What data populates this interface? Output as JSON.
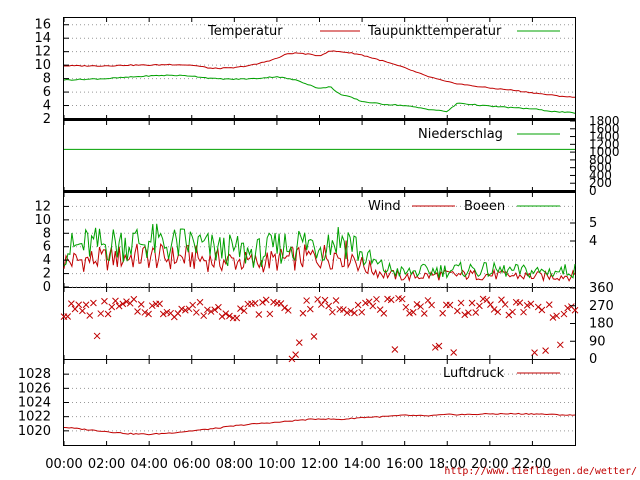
{
  "chart_data": [
    {
      "type": "line",
      "panel": "temperature",
      "ylim": [
        2,
        17
      ],
      "yticks": [
        "2",
        "4",
        "6",
        "8",
        "10",
        "12",
        "14",
        "16"
      ],
      "legend": [
        "Temperatur",
        "Taupunkttemperatur"
      ],
      "grid": true,
      "series": [
        {
          "name": "Temperatur",
          "color": "#c00000",
          "x": [
            0,
            1,
            2,
            3,
            4,
            5,
            6,
            7,
            8,
            9,
            10,
            10.5,
            11,
            11.5,
            12,
            12.5,
            13,
            13.5,
            14,
            15,
            16,
            17,
            18,
            19,
            20,
            21,
            22,
            23,
            24
          ],
          "values": [
            9.9,
            9.9,
            9.9,
            10.0,
            10.0,
            10.1,
            10.0,
            9.5,
            9.6,
            10.1,
            11.0,
            11.7,
            11.8,
            11.6,
            11.4,
            12.1,
            12.0,
            11.8,
            11.5,
            10.6,
            9.6,
            8.4,
            7.5,
            7.0,
            6.6,
            6.3,
            5.9,
            5.5,
            5.2
          ]
        },
        {
          "name": "Taupunkttemperatur",
          "color": "#00a000",
          "x": [
            0,
            1,
            2,
            3,
            4,
            5,
            6,
            7,
            8,
            9,
            10,
            11,
            11.5,
            12,
            12.5,
            13,
            13.5,
            14,
            15,
            16,
            17,
            18,
            18.5,
            19,
            20,
            21,
            22,
            23,
            24
          ],
          "values": [
            7.8,
            7.9,
            8.0,
            8.2,
            8.4,
            8.5,
            8.4,
            8.0,
            7.9,
            8.0,
            8.3,
            7.7,
            7.1,
            6.5,
            6.8,
            5.6,
            5.2,
            4.6,
            4.2,
            4.0,
            3.5,
            3.1,
            4.4,
            4.2,
            3.9,
            3.7,
            3.5,
            3.1,
            2.9
          ]
        }
      ]
    },
    {
      "type": "line",
      "panel": "precipitation",
      "ylim": [
        0,
        1800
      ],
      "yticks": [
        "0",
        "200",
        "400",
        "600",
        "800",
        "1000",
        "1200",
        "1400",
        "1600",
        "1800"
      ],
      "legend": [
        "Niederschlag"
      ],
      "series": [
        {
          "name": "Niederschlag",
          "color": "#00a000",
          "x": [
            0,
            24
          ],
          "values": [
            1070,
            1070
          ]
        }
      ]
    },
    {
      "type": "line",
      "panel": "wind",
      "ylim": [
        0,
        14
      ],
      "yticks": [
        "0",
        "2",
        "4",
        "6",
        "8",
        "10",
        "12"
      ],
      "yticks_right": [
        "4",
        "5"
      ],
      "legend": [
        "Wind",
        "Boeen"
      ],
      "series": [
        {
          "name": "Wind",
          "color": "#c00000",
          "x": [
            0,
            1,
            2,
            3,
            4,
            5,
            6,
            7,
            8,
            9,
            10,
            11,
            12,
            13,
            13.5,
            14,
            15,
            16,
            17,
            18,
            19,
            20,
            21,
            22,
            23,
            24
          ],
          "values": [
            3.8,
            4.0,
            4.2,
            4.5,
            4.6,
            4.3,
            4.4,
            3.9,
            3.9,
            3.6,
            4.0,
            4.3,
            4.5,
            5.0,
            4.8,
            3.2,
            2.0,
            1.5,
            1.7,
            1.8,
            1.8,
            1.8,
            1.7,
            1.6,
            1.6,
            1.7
          ]
        },
        {
          "name": "Boeen",
          "color": "#00a000",
          "x": [
            0,
            1,
            2,
            3,
            4,
            5,
            6,
            7,
            8,
            9,
            10,
            11,
            12,
            13,
            13.5,
            14,
            15,
            16,
            17,
            18,
            19,
            20,
            21,
            22,
            23,
            24
          ],
          "values": [
            5.5,
            6.2,
            6.3,
            6.6,
            6.8,
            6.2,
            6.5,
            5.6,
            5.4,
            5.0,
            5.8,
            6.6,
            6.4,
            7.2,
            7.0,
            4.6,
            2.8,
            2.1,
            2.4,
            2.5,
            2.6,
            2.5,
            2.4,
            2.3,
            2.3,
            2.5
          ]
        }
      ]
    },
    {
      "type": "scatter",
      "panel": "wind_direction",
      "ylim": [
        0,
        360
      ],
      "yticks_right": [
        "0",
        "90",
        "180",
        "270",
        "360"
      ],
      "series": [
        {
          "name": "",
          "color": "#c00000",
          "marker": "x",
          "x": [
            0,
            1,
            2,
            3,
            4,
            5,
            6,
            7,
            8,
            9,
            10,
            11,
            12,
            13,
            14,
            15,
            16,
            17,
            18,
            19,
            20,
            21,
            22,
            23,
            24
          ],
          "values": [
            245,
            255,
            260,
            265,
            262,
            250,
            255,
            250,
            245,
            260,
            270,
            255,
            265,
            270,
            275,
            265,
            270,
            265,
            255,
            265,
            265,
            260,
            255,
            250,
            255
          ]
        }
      ]
    },
    {
      "type": "line",
      "panel": "pressure",
      "ylim": [
        1018,
        1030
      ],
      "yticks": [
        "1020",
        "1022",
        "1024",
        "1026",
        "1028"
      ],
      "legend": [
        "Luftdruck"
      ],
      "series": [
        {
          "name": "Luftdruck",
          "color": "#c00000",
          "x": [
            0,
            1,
            2,
            3,
            4,
            5,
            6,
            7,
            8,
            9,
            10,
            11,
            12,
            13,
            14,
            15,
            16,
            17,
            18,
            19,
            20,
            21,
            22,
            23,
            24
          ],
          "values": [
            1020.5,
            1020.2,
            1019.9,
            1019.6,
            1019.5,
            1019.7,
            1020.0,
            1020.3,
            1020.7,
            1021.0,
            1021.2,
            1021.5,
            1021.7,
            1021.6,
            1021.9,
            1022.0,
            1022.2,
            1022.1,
            1022.3,
            1022.3,
            1022.4,
            1022.4,
            1022.4,
            1022.3,
            1022.2
          ]
        }
      ]
    }
  ],
  "x_axis": {
    "labels": [
      "00:00",
      "02:00",
      "04:00",
      "06:00",
      "08:00",
      "10:00",
      "12:00",
      "14:00",
      "16:00",
      "18:00",
      "20:00",
      "22:00"
    ],
    "range": [
      0,
      24
    ]
  },
  "footer": {
    "url": "http://www.tiefliegen.de/wetter/"
  }
}
